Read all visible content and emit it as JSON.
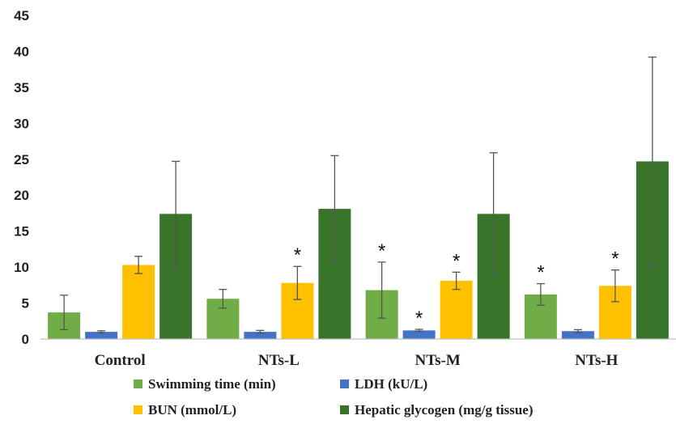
{
  "chart_data": {
    "type": "bar",
    "categories": [
      "Control",
      "NTs-L",
      "NTs-M",
      "NTs-H"
    ],
    "ylim": [
      0,
      45
    ],
    "yticks": [
      0,
      5,
      10,
      15,
      20,
      25,
      30,
      35,
      40,
      45
    ],
    "series": [
      {
        "name": "Swimming time (min)",
        "color": "#70ad47",
        "values": [
          3.7,
          5.6,
          6.8,
          6.2
        ],
        "errors": [
          2.4,
          1.3,
          3.9,
          1.5
        ],
        "significant": [
          false,
          false,
          true,
          true
        ]
      },
      {
        "name": "LDH (kU/L)",
        "color": "#4472c4",
        "values": [
          1.0,
          1.0,
          1.2,
          1.1
        ],
        "errors": [
          0.15,
          0.2,
          0.15,
          0.2
        ],
        "significant": [
          false,
          false,
          true,
          false
        ]
      },
      {
        "name": "BUN (mmol/L)",
        "color": "#ffc000",
        "values": [
          10.3,
          7.8,
          8.1,
          7.4
        ],
        "errors": [
          1.2,
          2.3,
          1.2,
          2.2
        ],
        "significant": [
          false,
          true,
          true,
          true
        ]
      },
      {
        "name": "Hepatic glycogen (mg/g tissue)",
        "color": "#38752a",
        "values": [
          17.4,
          18.1,
          17.4,
          24.7
        ],
        "errors": [
          7.3,
          7.4,
          8.5,
          14.5
        ],
        "significant": [
          false,
          false,
          false,
          false
        ]
      }
    ],
    "significance_marker": "*",
    "legend_position": "bottom",
    "grid": false
  }
}
